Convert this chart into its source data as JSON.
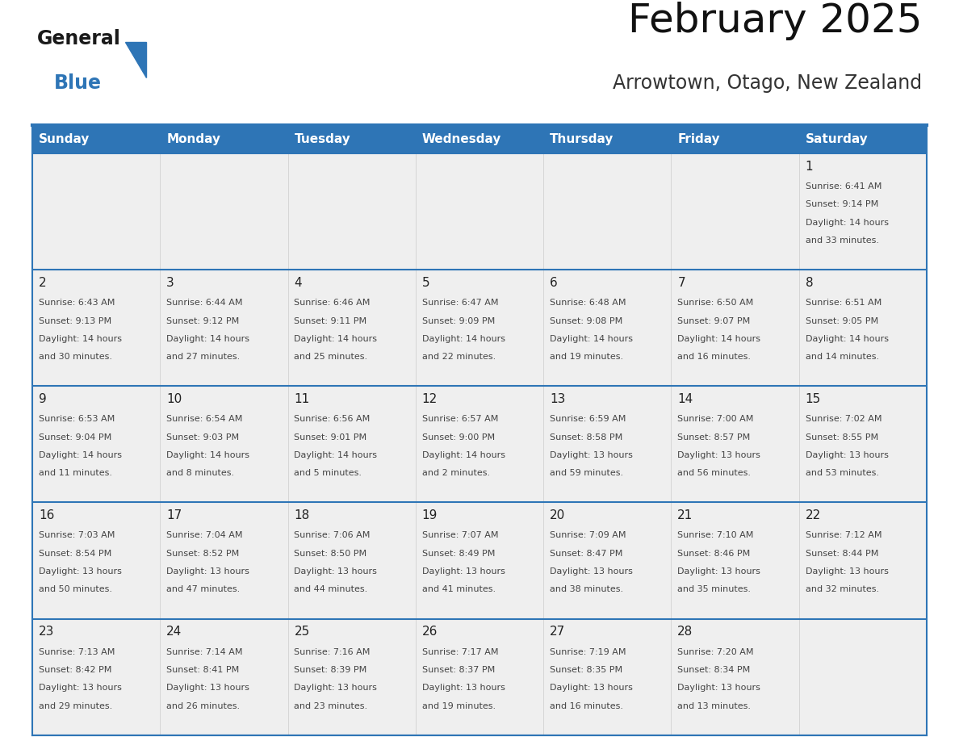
{
  "title": "February 2025",
  "subtitle": "Arrowtown, Otago, New Zealand",
  "header_color": "#2E75B6",
  "header_text_color": "#FFFFFF",
  "cell_bg_color": "#EFEFEF",
  "text_color": "#444444",
  "day_number_color": "#222222",
  "border_color": "#2E75B6",
  "days_of_week": [
    "Sunday",
    "Monday",
    "Tuesday",
    "Wednesday",
    "Thursday",
    "Friday",
    "Saturday"
  ],
  "calendar_data": [
    [
      {
        "day": "",
        "sunrise": "",
        "sunset": "",
        "daylight": ""
      },
      {
        "day": "",
        "sunrise": "",
        "sunset": "",
        "daylight": ""
      },
      {
        "day": "",
        "sunrise": "",
        "sunset": "",
        "daylight": ""
      },
      {
        "day": "",
        "sunrise": "",
        "sunset": "",
        "daylight": ""
      },
      {
        "day": "",
        "sunrise": "",
        "sunset": "",
        "daylight": ""
      },
      {
        "day": "",
        "sunrise": "",
        "sunset": "",
        "daylight": ""
      },
      {
        "day": "1",
        "sunrise": "6:41 AM",
        "sunset": "9:14 PM",
        "daylight": "14 hours and 33 minutes."
      }
    ],
    [
      {
        "day": "2",
        "sunrise": "6:43 AM",
        "sunset": "9:13 PM",
        "daylight": "14 hours and 30 minutes."
      },
      {
        "day": "3",
        "sunrise": "6:44 AM",
        "sunset": "9:12 PM",
        "daylight": "14 hours and 27 minutes."
      },
      {
        "day": "4",
        "sunrise": "6:46 AM",
        "sunset": "9:11 PM",
        "daylight": "14 hours and 25 minutes."
      },
      {
        "day": "5",
        "sunrise": "6:47 AM",
        "sunset": "9:09 PM",
        "daylight": "14 hours and 22 minutes."
      },
      {
        "day": "6",
        "sunrise": "6:48 AM",
        "sunset": "9:08 PM",
        "daylight": "14 hours and 19 minutes."
      },
      {
        "day": "7",
        "sunrise": "6:50 AM",
        "sunset": "9:07 PM",
        "daylight": "14 hours and 16 minutes."
      },
      {
        "day": "8",
        "sunrise": "6:51 AM",
        "sunset": "9:05 PM",
        "daylight": "14 hours and 14 minutes."
      }
    ],
    [
      {
        "day": "9",
        "sunrise": "6:53 AM",
        "sunset": "9:04 PM",
        "daylight": "14 hours and 11 minutes."
      },
      {
        "day": "10",
        "sunrise": "6:54 AM",
        "sunset": "9:03 PM",
        "daylight": "14 hours and 8 minutes."
      },
      {
        "day": "11",
        "sunrise": "6:56 AM",
        "sunset": "9:01 PM",
        "daylight": "14 hours and 5 minutes."
      },
      {
        "day": "12",
        "sunrise": "6:57 AM",
        "sunset": "9:00 PM",
        "daylight": "14 hours and 2 minutes."
      },
      {
        "day": "13",
        "sunrise": "6:59 AM",
        "sunset": "8:58 PM",
        "daylight": "13 hours and 59 minutes."
      },
      {
        "day": "14",
        "sunrise": "7:00 AM",
        "sunset": "8:57 PM",
        "daylight": "13 hours and 56 minutes."
      },
      {
        "day": "15",
        "sunrise": "7:02 AM",
        "sunset": "8:55 PM",
        "daylight": "13 hours and 53 minutes."
      }
    ],
    [
      {
        "day": "16",
        "sunrise": "7:03 AM",
        "sunset": "8:54 PM",
        "daylight": "13 hours and 50 minutes."
      },
      {
        "day": "17",
        "sunrise": "7:04 AM",
        "sunset": "8:52 PM",
        "daylight": "13 hours and 47 minutes."
      },
      {
        "day": "18",
        "sunrise": "7:06 AM",
        "sunset": "8:50 PM",
        "daylight": "13 hours and 44 minutes."
      },
      {
        "day": "19",
        "sunrise": "7:07 AM",
        "sunset": "8:49 PM",
        "daylight": "13 hours and 41 minutes."
      },
      {
        "day": "20",
        "sunrise": "7:09 AM",
        "sunset": "8:47 PM",
        "daylight": "13 hours and 38 minutes."
      },
      {
        "day": "21",
        "sunrise": "7:10 AM",
        "sunset": "8:46 PM",
        "daylight": "13 hours and 35 minutes."
      },
      {
        "day": "22",
        "sunrise": "7:12 AM",
        "sunset": "8:44 PM",
        "daylight": "13 hours and 32 minutes."
      }
    ],
    [
      {
        "day": "23",
        "sunrise": "7:13 AM",
        "sunset": "8:42 PM",
        "daylight": "13 hours and 29 minutes."
      },
      {
        "day": "24",
        "sunrise": "7:14 AM",
        "sunset": "8:41 PM",
        "daylight": "13 hours and 26 minutes."
      },
      {
        "day": "25",
        "sunrise": "7:16 AM",
        "sunset": "8:39 PM",
        "daylight": "13 hours and 23 minutes."
      },
      {
        "day": "26",
        "sunrise": "7:17 AM",
        "sunset": "8:37 PM",
        "daylight": "13 hours and 19 minutes."
      },
      {
        "day": "27",
        "sunrise": "7:19 AM",
        "sunset": "8:35 PM",
        "daylight": "13 hours and 16 minutes."
      },
      {
        "day": "28",
        "sunrise": "7:20 AM",
        "sunset": "8:34 PM",
        "daylight": "13 hours and 13 minutes."
      },
      {
        "day": "",
        "sunrise": "",
        "sunset": "",
        "daylight": ""
      }
    ]
  ],
  "logo_text1": "General",
  "logo_text2": "Blue",
  "logo_color1": "#1a1a1a",
  "logo_color2": "#2E75B6",
  "logo_triangle_color": "#2E75B6",
  "fig_width": 11.88,
  "fig_height": 9.18,
  "dpi": 100
}
